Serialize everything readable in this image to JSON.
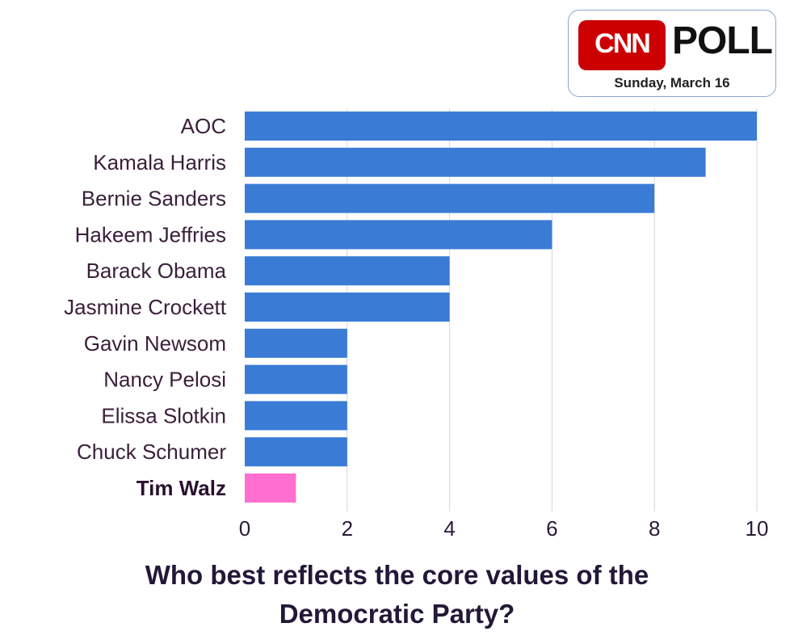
{
  "badge": {
    "logo_text": "CNN",
    "poll_label": "POLL",
    "date": "Sunday, March 16"
  },
  "chart_data": {
    "type": "bar",
    "orientation": "horizontal",
    "categories": [
      "AOC",
      "Kamala Harris",
      "Bernie Sanders",
      "Hakeem Jeffries",
      "Barack Obama",
      "Jasmine Crockett",
      "Gavin Newsom",
      "Nancy Pelosi",
      "Elissa Slotkin",
      "Chuck Schumer",
      "Tim Walz"
    ],
    "values": [
      10,
      9,
      8,
      6,
      4,
      4,
      2,
      2,
      2,
      2,
      1
    ],
    "highlight": "Tim Walz",
    "xlim": [
      0,
      10
    ],
    "xticks": [
      0,
      2,
      4,
      6,
      8,
      10
    ],
    "grid": "vertical",
    "title_line1": "Who best reflects the core values of the",
    "title_line2": "Democratic Party?",
    "colors": {
      "bar": "#3a7bd5",
      "highlight_bar": "#ff6fcf",
      "grid": "#d6d6d6"
    }
  }
}
